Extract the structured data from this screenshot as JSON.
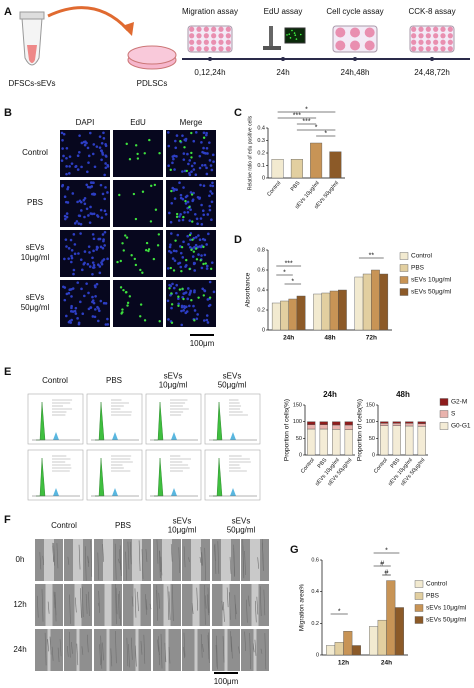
{
  "panel_labels": [
    "A",
    "B",
    "C",
    "D",
    "E",
    "F",
    "G"
  ],
  "schematic": {
    "source": "DFSCs-sEVs",
    "target": "PDLSCs",
    "assays": [
      {
        "name": "Migration assay",
        "times": "0,12,24h"
      },
      {
        "name": "EdU assay",
        "times": "24h"
      },
      {
        "name": "Cell cycle assay",
        "times": "24h,48h"
      },
      {
        "name": "CCK-8 assay",
        "times": "24,48,72h"
      }
    ]
  },
  "edu_images": {
    "columns": [
      "DAPI",
      "EdU",
      "Merge"
    ],
    "rows": [
      [
        "Control"
      ],
      [
        "PBS"
      ],
      [
        "sEVs",
        "10μg/ml"
      ],
      [
        "sEVs",
        "50μg/ml"
      ]
    ],
    "scale_bar": "100μm"
  },
  "flow_images": {
    "columns": [
      [
        "Control"
      ],
      [
        "PBS"
      ],
      [
        "sEVs",
        "10μg/ml"
      ],
      [
        "sEVs",
        "50μg/ml"
      ]
    ]
  },
  "scratch_images": {
    "columns": [
      [
        "Control"
      ],
      [
        "PBS"
      ],
      [
        "sEVs",
        "10μg/ml"
      ],
      [
        "sEVs",
        "50μg/ml"
      ]
    ],
    "rows": [
      "0h",
      "12h",
      "24h"
    ],
    "scale_bar": "100μm"
  },
  "chart_data": [
    {
      "type": "bar",
      "ylabel": "Relative ratio of edu positive cells",
      "categories": [
        "Control",
        "PBS",
        "sEVs 10μg/ml",
        "sEVs 50μg/ml"
      ],
      "values": [
        0.15,
        0.15,
        0.28,
        0.21
      ],
      "colors": [
        "#f2ead0",
        "#e2cfa0",
        "#c89456",
        "#8c5a28"
      ],
      "ylim": [
        0,
        0.4
      ],
      "yticks": [
        0,
        0.1,
        0.2,
        0.3,
        0.4
      ],
      "annotations": [
        "*",
        "***",
        "***",
        "*",
        "*"
      ]
    },
    {
      "type": "bar",
      "ylabel": "Absorbance",
      "categories": [
        "24h",
        "48h",
        "72h"
      ],
      "series": [
        {
          "name": "Control",
          "color": "#f2ead0",
          "values": [
            0.27,
            0.36,
            0.53
          ]
        },
        {
          "name": "PBS",
          "color": "#e2cfa0",
          "values": [
            0.29,
            0.37,
            0.56
          ]
        },
        {
          "name": "sEVs 10μg/ml",
          "color": "#c89456",
          "values": [
            0.31,
            0.39,
            0.6
          ]
        },
        {
          "name": "sEVs 50μg/ml",
          "color": "#8c5a28",
          "values": [
            0.34,
            0.4,
            0.56
          ]
        }
      ],
      "ylim": [
        0,
        0.8
      ],
      "yticks": [
        0,
        0.2,
        0.4,
        0.6,
        0.8
      ],
      "legend": "right",
      "annotations": [
        "**",
        "***",
        "*",
        "*"
      ]
    },
    {
      "type": "bar",
      "stacked": true,
      "title": "24h",
      "ylabel": "Proportion of cells(%)",
      "categories": [
        "Control",
        "PBS",
        "sEVs 10μg/ml",
        "sEVs 50μg/ml"
      ],
      "series": [
        {
          "name": "G0-G1",
          "color": "#f4ecd6",
          "values": [
            78,
            78,
            77,
            76
          ]
        },
        {
          "name": "S",
          "color": "#e9b3ad",
          "values": [
            13,
            13,
            13,
            14
          ]
        },
        {
          "name": "G2-M",
          "color": "#8e1c1c",
          "values": [
            9,
            9,
            10,
            10
          ]
        }
      ],
      "ylim": [
        0,
        150
      ],
      "yticks": [
        0,
        50,
        100,
        150
      ],
      "legend": "right"
    },
    {
      "type": "bar",
      "stacked": true,
      "title": "48h",
      "ylabel": "Proportion of cells(%)",
      "categories": [
        "Control",
        "PBS",
        "sEVs 10μg/ml",
        "sEVs 50μg/ml"
      ],
      "series": [
        {
          "name": "G0-G1",
          "color": "#f4ecd6",
          "values": [
            88,
            88,
            87,
            86
          ]
        },
        {
          "name": "S",
          "color": "#e9b3ad",
          "values": [
            7,
            7,
            8,
            8
          ]
        },
        {
          "name": "G2-M",
          "color": "#8e1c1c",
          "values": [
            5,
            5,
            5,
            6
          ]
        }
      ],
      "ylim": [
        0,
        150
      ],
      "yticks": [
        0,
        50,
        100,
        150
      ]
    },
    {
      "type": "bar",
      "ylabel": "Migration area%",
      "categories": [
        "12h",
        "24h"
      ],
      "series": [
        {
          "name": "Control",
          "color": "#f2ead0",
          "values": [
            0.06,
            0.18
          ]
        },
        {
          "name": "PBS",
          "color": "#e2cfa0",
          "values": [
            0.08,
            0.22
          ]
        },
        {
          "name": "sEVs 10μg/ml",
          "color": "#c89456",
          "values": [
            0.15,
            0.47
          ]
        },
        {
          "name": "sEVs 50μg/ml",
          "color": "#8c5a28",
          "values": [
            0.06,
            0.3
          ]
        }
      ],
      "ylim": [
        0,
        0.6
      ],
      "yticks": [
        0,
        0.2,
        0.4,
        0.6
      ],
      "legend": "right",
      "annotations": [
        "*",
        "#",
        "#",
        "*"
      ]
    }
  ]
}
